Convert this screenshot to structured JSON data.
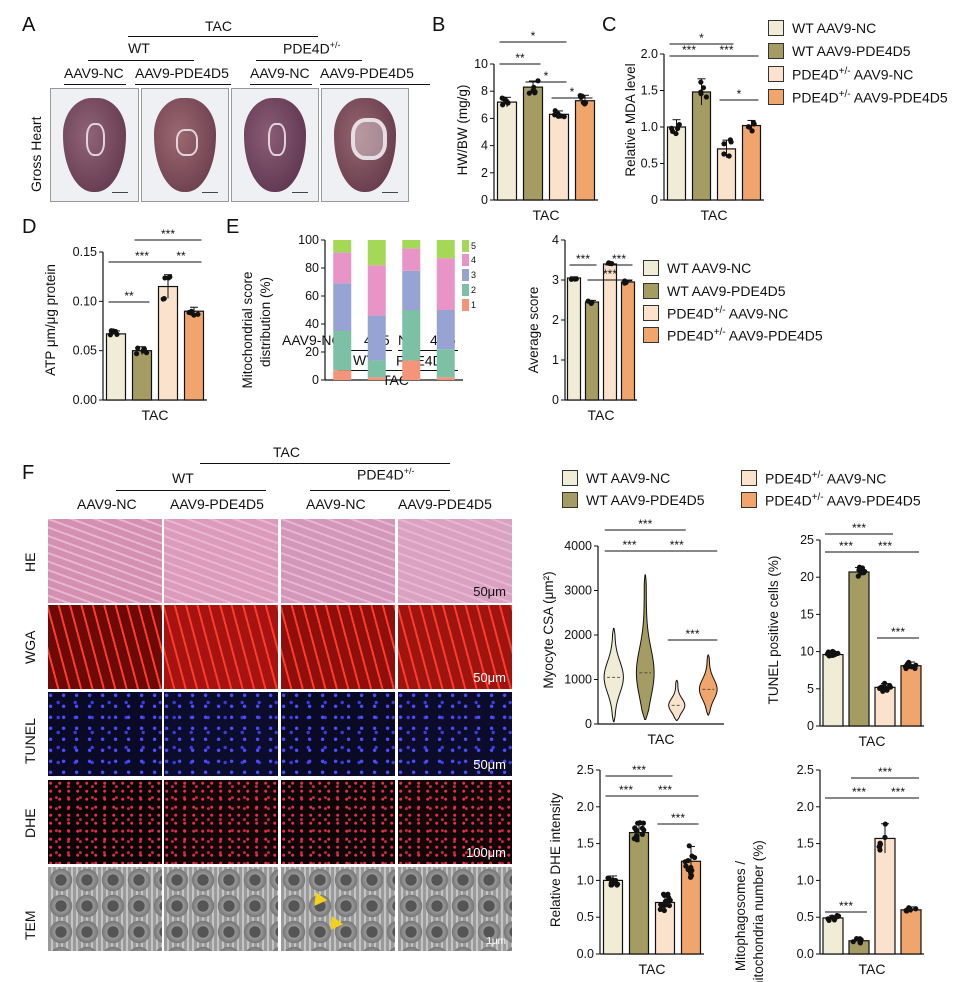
{
  "colors": {
    "wt_nc": "#f0ecd6",
    "wt_pde": "#a49c63",
    "het_nc": "#fbe2cd",
    "het_pde": "#f0a56c",
    "err": "#111"
  },
  "panels": {
    "A": "A",
    "B": "B",
    "C": "C",
    "D": "D",
    "E": "E",
    "F": "F"
  },
  "panelA": {
    "tac": "TAC",
    "wt": "WT",
    "het": "PDE4D+/-",
    "het_base": "PDE4D",
    "het_sup": "+/-",
    "cols": [
      "AAV9-NC",
      "AAV9-PDE4D5",
      "AAV9-NC",
      "AAV9-PDE4D5"
    ],
    "ylabel": "Gross Heart"
  },
  "legendTop": [
    {
      "base": "WT  AAV9-NC",
      "sup": "",
      "tail": ""
    },
    {
      "base": "WT  AAV9-PDE4D5",
      "sup": "",
      "tail": ""
    },
    {
      "base": "PDE4D",
      "sup": "+/-",
      "tail": " AAV9-NC"
    },
    {
      "base": "PDE4D",
      "sup": "+/-",
      "tail": " AAV9-PDE4D5"
    }
  ],
  "legendE": [
    {
      "base": "WT  AAV9-NC",
      "sup": "",
      "tail": ""
    },
    {
      "base": "WT  AAV9-PDE4D5",
      "sup": "",
      "tail": ""
    },
    {
      "base": "PDE4D",
      "sup": "+/-",
      "tail": " AAV9-NC"
    },
    {
      "base": "PDE4D",
      "sup": "+/-",
      "tail": " AAV9-PDE4D5"
    }
  ],
  "legendF": [
    {
      "base": "WT AAV9-NC",
      "sup": "",
      "tail": ""
    },
    {
      "base": "WT AAV9-PDE4D5",
      "sup": "",
      "tail": ""
    },
    {
      "base": "PDE4D",
      "sup": "+/-",
      "tail": " AAV9-NC"
    },
    {
      "base": "PDE4D",
      "sup": "+/-",
      "tail": " AAV9-PDE4D5"
    }
  ],
  "panelE": {
    "xgroups": [
      "AAV9-NC",
      "4D5",
      "NC",
      "4D5"
    ],
    "wt": "WT",
    "het_base": "PDE4D",
    "het_sup": "+/-",
    "tac": "TAC",
    "scores": [
      "5",
      "4",
      "3",
      "2",
      "1"
    ]
  },
  "panelF": {
    "tac": "TAC",
    "wt": "WT",
    "het_base": "PDE4D",
    "het_sup": "+/-",
    "cols": [
      "AAV9-NC",
      "AAV9-PDE4D5",
      "AAV9-NC",
      "AAV9-PDE4D5"
    ],
    "rows": [
      "HE",
      "WGA",
      "TUNEL",
      "DHE",
      "TEM"
    ],
    "scales": [
      "50μm",
      "50μm",
      "50μm",
      "100μm",
      "1μm"
    ]
  },
  "chart_data": [
    {
      "id": "B",
      "type": "bar",
      "ylabel": "HW/BW (mg/g)",
      "xlabel": "TAC",
      "ylim": [
        0,
        10
      ],
      "yticks": [
        0,
        2,
        4,
        6,
        8,
        10
      ],
      "values": [
        7.2,
        8.3,
        6.3,
        7.3
      ],
      "err": [
        0.35,
        0.45,
        0.25,
        0.4
      ],
      "sig": [
        {
          "a": 0,
          "b": 2,
          "t": "*",
          "lvl": 3
        },
        {
          "a": 0,
          "b": 1,
          "t": "**",
          "lvl": 2
        },
        {
          "a": 1,
          "b": 2,
          "t": "*",
          "lvl": 1
        },
        {
          "a": 2,
          "b": 3,
          "t": "*",
          "lvl": 0
        }
      ]
    },
    {
      "id": "C",
      "type": "bar",
      "ylabel": "Relative MDA level",
      "xlabel": "TAC",
      "ylim": [
        0,
        2.0
      ],
      "yticks": [
        0,
        0.5,
        1.0,
        1.5,
        2.0
      ],
      "values": [
        1.0,
        1.48,
        0.7,
        1.02
      ],
      "err": [
        0.1,
        0.18,
        0.12,
        0.07
      ],
      "sig": [
        {
          "a": 0,
          "b": 2,
          "t": "*",
          "lvl": 3
        },
        {
          "a": 0,
          "b": 1,
          "t": "***",
          "lvl": 2
        },
        {
          "a": 1,
          "b": 3,
          "t": "***",
          "lvl": 2
        },
        {
          "a": 2,
          "b": 3,
          "t": "*",
          "lvl": 0
        }
      ]
    },
    {
      "id": "D",
      "type": "bar",
      "ylabel": "ATP μm/μg protein",
      "xlabel": "TAC",
      "ylim": [
        0,
        0.15
      ],
      "yticks": [
        0,
        0.05,
        0.1,
        0.15
      ],
      "values": [
        0.067,
        0.05,
        0.115,
        0.09
      ],
      "err": [
        0.003,
        0.004,
        0.012,
        0.004
      ],
      "sig": [
        {
          "a": 1,
          "b": 3,
          "t": "***",
          "lvl": 3
        },
        {
          "a": 0,
          "b": 2,
          "t": "***",
          "lvl": 2
        },
        {
          "a": 2,
          "b": 3,
          "t": "**",
          "lvl": 2
        },
        {
          "a": 0,
          "b": 1,
          "t": "**",
          "lvl": 0
        }
      ]
    },
    {
      "id": "E1",
      "type": "stacked-bar",
      "ylabel": "Mitochondrial score distribution (%)",
      "ylim": [
        0,
        100
      ],
      "yticks": [
        0,
        20,
        40,
        60,
        80,
        100
      ],
      "categories": [
        "AAV9-NC",
        "4D5",
        "NC",
        "4D5"
      ],
      "series": [
        {
          "name": "1",
          "color": "#f49478",
          "values": [
            7,
            2,
            14,
            2
          ]
        },
        {
          "name": "2",
          "color": "#7cc0a5",
          "values": [
            28,
            12,
            36,
            20
          ]
        },
        {
          "name": "3",
          "color": "#97a3d3",
          "values": [
            34,
            32,
            28,
            28
          ]
        },
        {
          "name": "4",
          "color": "#e894c6",
          "values": [
            22,
            36,
            16,
            37
          ]
        },
        {
          "name": "5",
          "color": "#a6d858",
          "values": [
            9,
            18,
            6,
            13
          ]
        }
      ]
    },
    {
      "id": "E2",
      "type": "bar",
      "ylabel": "Average score",
      "xlabel": "TAC",
      "ylim": [
        0,
        4
      ],
      "yticks": [
        0,
        1,
        2,
        3,
        4
      ],
      "values": [
        3.05,
        2.45,
        3.4,
        2.95
      ],
      "err": [
        0.03,
        0.04,
        0.03,
        0.03
      ],
      "sig": [
        {
          "a": 0,
          "b": 1,
          "t": "***",
          "lvl": 2
        },
        {
          "a": 2,
          "b": 3,
          "t": "***",
          "lvl": 2
        },
        {
          "a": 1,
          "b": 3,
          "t": "***",
          "lvl": 0
        }
      ]
    },
    {
      "id": "F1",
      "type": "violin",
      "ylabel": "Myocyte CSA (μm²)",
      "xlabel": "TAC",
      "ylim": [
        0,
        4000
      ],
      "yticks": [
        0,
        1000,
        2000,
        3000,
        4000
      ],
      "values": [
        {
          "min": 50,
          "max": 2150,
          "median": 1050,
          "w": 0.55
        },
        {
          "min": 100,
          "max": 3350,
          "median": 1150,
          "w": 0.5
        },
        {
          "min": 80,
          "max": 980,
          "median": 420,
          "w": 0.45
        },
        {
          "min": 200,
          "max": 1550,
          "median": 780,
          "w": 0.5
        }
      ],
      "sig": [
        {
          "a": 0,
          "b": 2,
          "t": "***",
          "lvl": 3
        },
        {
          "a": 0,
          "b": 1,
          "t": "***",
          "lvl": 2
        },
        {
          "a": 1,
          "b": 3,
          "t": "***",
          "lvl": 2
        },
        {
          "a": 2,
          "b": 3,
          "t": "***",
          "lvl": 0
        }
      ]
    },
    {
      "id": "F2",
      "type": "bar",
      "ylabel": "TUNEL positive cells (%)",
      "xlabel": "TAC",
      "ylim": [
        0,
        25
      ],
      "yticks": [
        0,
        5,
        10,
        15,
        20,
        25
      ],
      "values": [
        9.6,
        20.7,
        5.2,
        8.1
      ],
      "err": [
        0.4,
        0.6,
        0.5,
        0.5
      ],
      "sig": [
        {
          "a": 0,
          "b": 2,
          "t": "***",
          "lvl": 3
        },
        {
          "a": 0,
          "b": 1,
          "t": "***",
          "lvl": 2
        },
        {
          "a": 1,
          "b": 3,
          "t": "***",
          "lvl": 2
        },
        {
          "a": 2,
          "b": 3,
          "t": "***",
          "lvl": 0
        }
      ]
    },
    {
      "id": "F3",
      "type": "bar",
      "ylabel": "Relative DHE intensity",
      "xlabel": "TAC",
      "ylim": [
        0,
        2.5
      ],
      "yticks": [
        0,
        0.5,
        1.0,
        1.5,
        2.0,
        2.5
      ],
      "values": [
        1.0,
        1.65,
        0.7,
        1.26
      ],
      "err": [
        0.06,
        0.13,
        0.12,
        0.2
      ],
      "sig": [
        {
          "a": 0,
          "b": 2,
          "t": "***",
          "lvl": 3
        },
        {
          "a": 0,
          "b": 1,
          "t": "***",
          "lvl": 2
        },
        {
          "a": 1,
          "b": 3,
          "t": "***",
          "lvl": 2
        },
        {
          "a": 2,
          "b": 3,
          "t": "***",
          "lvl": 0
        }
      ]
    },
    {
      "id": "F4",
      "type": "bar",
      "ylabel": "Mitophagosomes / mitochondria number (%)",
      "xlabel": "TAC",
      "ylim": [
        0,
        2.5
      ],
      "yticks": [
        0,
        0.5,
        1.0,
        1.5,
        2.0,
        2.5
      ],
      "values": [
        0.49,
        0.18,
        1.57,
        0.6
      ],
      "err": [
        0.03,
        0.03,
        0.2,
        0.04
      ],
      "sig": [
        {
          "a": 1,
          "b": 3,
          "t": "***",
          "lvl": 3
        },
        {
          "a": 0,
          "b": 2,
          "t": "***",
          "lvl": 2
        },
        {
          "a": 2,
          "b": 3,
          "t": "***",
          "lvl": 2
        },
        {
          "a": 0,
          "b": 1,
          "t": "***",
          "lvl": 0
        }
      ]
    }
  ]
}
